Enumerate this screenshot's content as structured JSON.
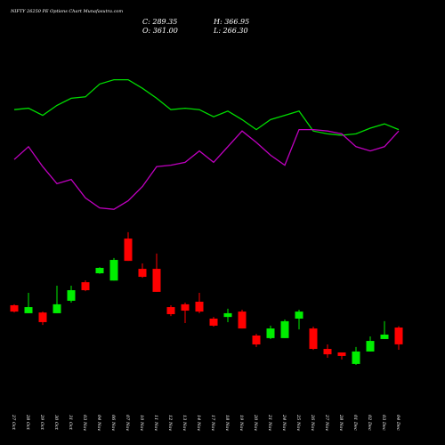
{
  "chart_data": {
    "type": "candlestick",
    "title": "NIFTY 26250  PE Options  Chart Munafasutra.com",
    "ohlc_labels": {
      "close": "C: 289.35",
      "high": "H: 366.95",
      "open": "O: 361.00",
      "low": "L: 266.30"
    },
    "categories": [
      "27 Oct",
      "28 Oct",
      "29 Oct",
      "30 Oct",
      "31 Oct",
      "03 Nov",
      "04 Nov",
      "06 Nov",
      "07 Nov",
      "10 Nov",
      "11 Nov",
      "12 Nov",
      "13 Nov",
      "14 Nov",
      "17 Nov",
      "18 Nov",
      "19 Nov",
      "20 Nov",
      "21 Nov",
      "24 Nov",
      "25 Nov",
      "26 Nov",
      "27 Nov",
      "28 Nov",
      "01 Dec",
      "02 Dec",
      "03 Dec",
      "04 Dec"
    ],
    "open": [
      456,
      422,
      425,
      422,
      475,
      554,
      592,
      561,
      740,
      611,
      611,
      448,
      460,
      471,
      399,
      406,
      429,
      327,
      316,
      316,
      399,
      357,
      270,
      255,
      206,
      259,
      312,
      361
    ],
    "high": [
      460,
      509,
      429,
      539,
      539,
      562,
      618,
      657,
      767,
      634,
      676,
      456,
      467,
      509,
      406,
      441,
      437,
      334,
      369,
      395,
      437,
      365,
      289,
      255,
      278,
      323,
      388,
      366.95
    ],
    "low": [
      425,
      422,
      372,
      422,
      467,
      516,
      590,
      561,
      645,
      573,
      513,
      410,
      380,
      422,
      365,
      384,
      357,
      278,
      312,
      316,
      353,
      266,
      232,
      225,
      202,
      259,
      312,
      266.3
    ],
    "close": [
      429,
      448,
      384,
      460,
      520,
      520,
      615,
      649,
      645,
      577,
      513,
      418,
      433,
      429,
      369,
      422,
      357,
      289,
      357,
      388,
      429,
      270,
      247,
      240,
      259,
      304,
      331,
      289.35
    ],
    "up_color": "#00ee00",
    "down_color": "#ff0000",
    "ylim": [
      200,
      800
    ],
    "indicators": {
      "ylim": [
        0,
        100
      ],
      "series": [
        {
          "color": "#00dd00",
          "values": [
            73,
            74,
            69,
            76,
            81,
            82,
            91,
            94,
            94,
            88,
            81,
            73,
            74,
            73,
            68,
            72,
            66,
            59,
            66,
            69,
            72,
            58,
            56,
            55,
            56,
            60,
            63,
            59
          ]
        },
        {
          "color": "#c000c0",
          "values": [
            38,
            47,
            33,
            21,
            24,
            11,
            4,
            3,
            9,
            19,
            33,
            34,
            36,
            44,
            36,
            47,
            58,
            50,
            41,
            34,
            59,
            59,
            58,
            56,
            47,
            44,
            47,
            58
          ]
        }
      ]
    }
  }
}
